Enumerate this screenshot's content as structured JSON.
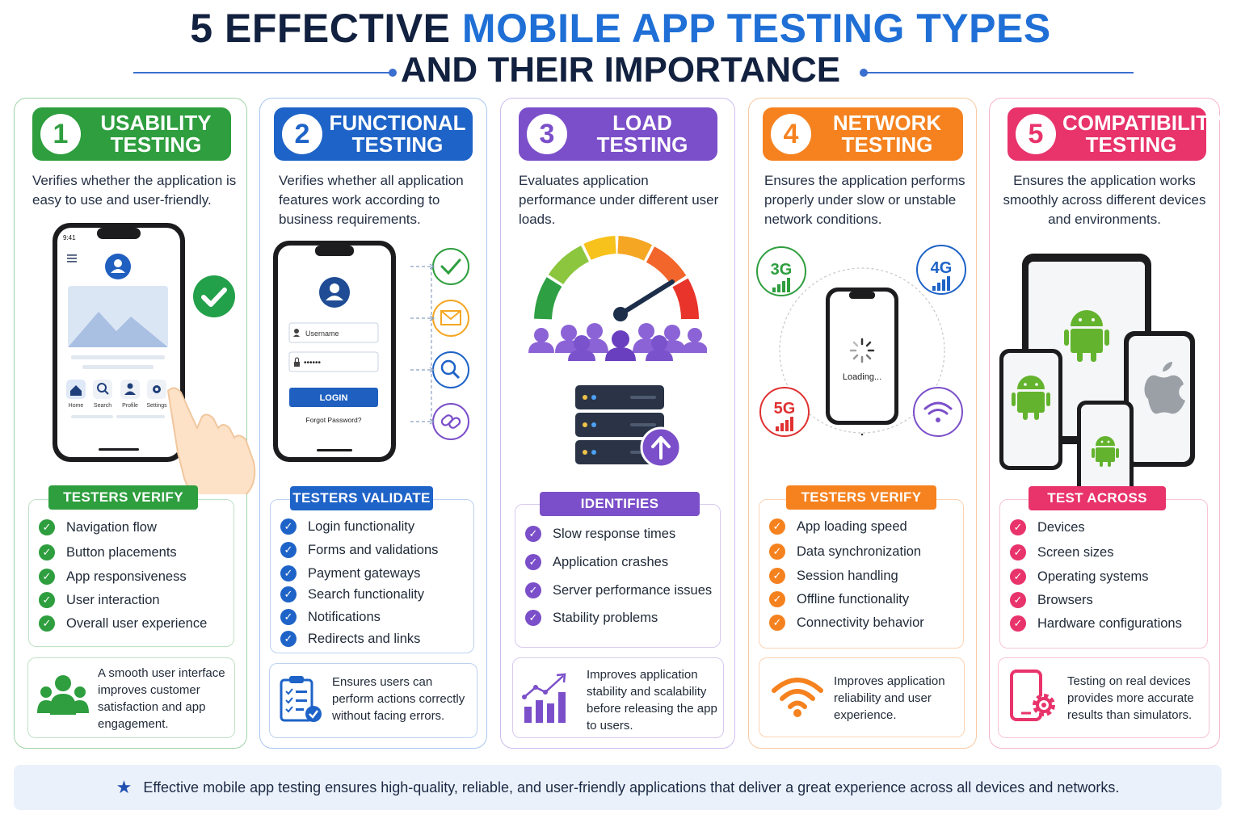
{
  "title": {
    "line1_a": "5 EFFECTIVE ",
    "line1_b": "MOBILE APP TESTING TYPES",
    "line2": "AND THEIR IMPORTANCE"
  },
  "colors": {
    "green": "#2e9e3e",
    "blue": "#1e63c7",
    "purple": "#7b4fc9",
    "orange": "#f5821f",
    "pink": "#e8336b",
    "navy": "#12213f"
  },
  "cards": [
    {
      "number": "1",
      "title": "USABILITY\nTESTING",
      "description": "Verifies whether the application is easy to use and user-friendly.",
      "section_label": "TESTERS VERIFY",
      "items": [
        "Navigation flow",
        "Button placements",
        "App responsiveness",
        "User interaction",
        "Overall user experience"
      ],
      "note": "A smooth user interface improves customer satisfaction and app engagement.",
      "note_icon": "users-icon",
      "phone": {
        "time": "9:41",
        "nav": [
          "Home",
          "Search",
          "Profile",
          "Settings"
        ]
      }
    },
    {
      "number": "2",
      "title": "FUNCTIONAL\nTESTING",
      "description": "Verifies whether all application features work according to business requirements.",
      "section_label": "TESTERS VALIDATE",
      "items": [
        "Login functionality",
        "Forms and validations",
        "Payment gateways",
        "Search functionality",
        "Notifications",
        "Redirects and links"
      ],
      "note": "Ensures users can perform actions correctly without facing errors.",
      "note_icon": "checklist-icon",
      "phone": {
        "username_placeholder": "Username",
        "password_value": "••••••",
        "login_label": "LOGIN",
        "forgot_label": "Forgot Password?"
      }
    },
    {
      "number": "3",
      "title": "LOAD\nTESTING",
      "description": "Evaluates application performance under different user loads.",
      "section_label": "IDENTIFIES",
      "items": [
        "Slow response times",
        "Application crashes",
        "Server performance issues",
        "Stability problems"
      ],
      "note": "Improves application stability and scalability before releasing the app to users.",
      "note_icon": "growth-chart-icon"
    },
    {
      "number": "4",
      "title": "NETWORK\nTESTING",
      "description": "Ensures the application performs properly under slow or unstable network conditions.",
      "section_label": "TESTERS VERIFY",
      "items": [
        "App loading speed",
        "Data synchronization",
        "Session handling",
        "Offline functionality",
        "Connectivity behavior"
      ],
      "note": "Improves application reliability and user experience.",
      "note_icon": "wifi-icon",
      "network_badges": [
        "3G",
        "4G",
        "5G"
      ],
      "loading_label": "Loading..."
    },
    {
      "number": "5",
      "title": "COMPATIBILITY\nTESTING",
      "description": "Ensures the application works smoothly across different devices and environments.",
      "section_label": "TEST ACROSS",
      "items": [
        "Devices",
        "Screen sizes",
        "Operating systems",
        "Browsers",
        "Hardware configurations"
      ],
      "note": "Testing on real devices provides more accurate results than simulators.",
      "note_icon": "device-gear-icon"
    }
  ],
  "footer": "Effective mobile app testing ensures high-quality, reliable, and user-friendly applications that deliver a great experience across all devices and networks."
}
